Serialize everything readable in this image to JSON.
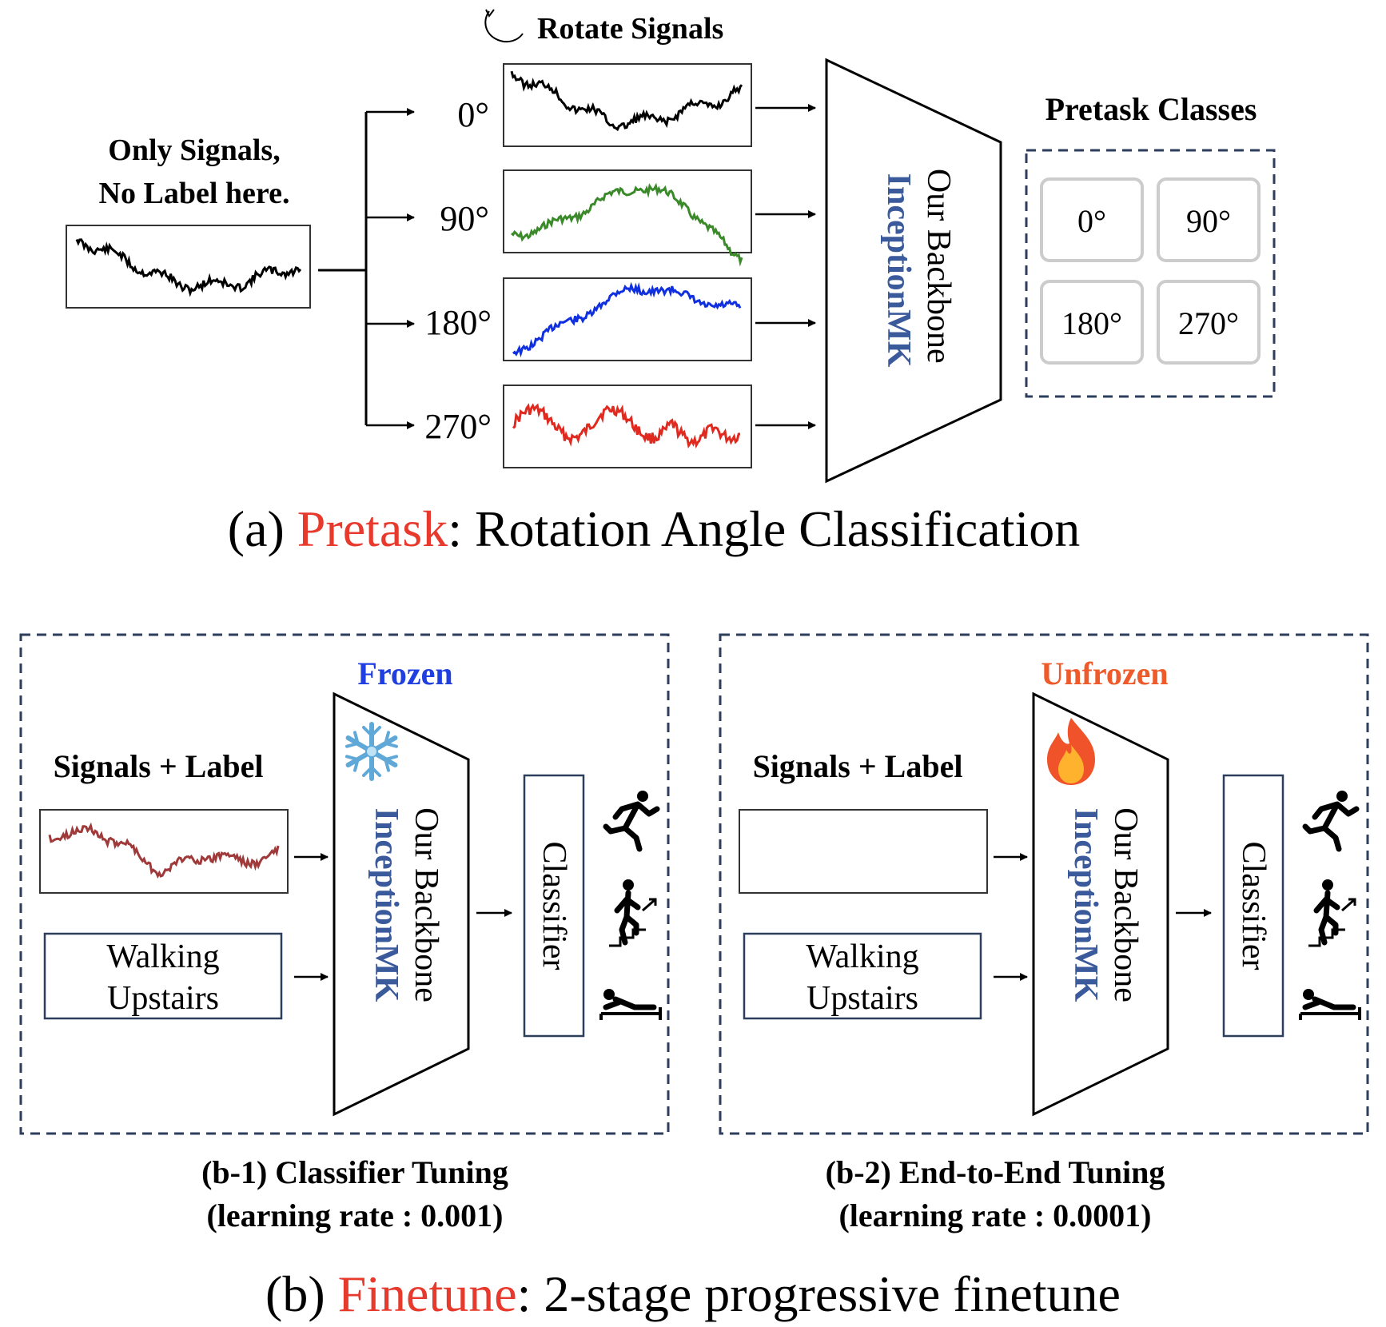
{
  "pretask": {
    "rotate_title": "Rotate Signals",
    "input_caption_line1": "Only Signals,",
    "input_caption_line2": "No Label here.",
    "angles": [
      "0°",
      "90°",
      "180°",
      "270°"
    ],
    "backbone_line1": "Our Backbone",
    "backbone_line2": "InceptionMK",
    "classes_title": "Pretask Classes",
    "classes": [
      "0°",
      "90°",
      "180°",
      "270°"
    ],
    "caption_prefix": "(a) ",
    "caption_highlight": "Pretask",
    "caption_rest": ": Rotation Angle Classification"
  },
  "finetune": {
    "panels": [
      {
        "state_label": "Frozen",
        "state_icon": "snowflake-icon",
        "input_title": "Signals + Label",
        "label_line1": "Walking",
        "label_line2": "Upstairs",
        "backbone_line1": "Our Backbone",
        "backbone_line2": "InceptionMK",
        "classifier": "Classifier",
        "subcaption_line1": "(b-1) Classifier Tuning",
        "subcaption_line2": "(learning rate : 0.001)"
      },
      {
        "state_label": "Unfrozen",
        "state_icon": "fire-icon",
        "input_title": "Signals + Label",
        "label_line1": "Walking",
        "label_line2": "Upstairs",
        "backbone_line1": "Our Backbone",
        "backbone_line2": "InceptionMK",
        "classifier": "Classifier",
        "subcaption_line1": "(b-2) End-to-End Tuning",
        "subcaption_line2": "(learning rate : 0.0001)"
      }
    ],
    "activity_icons": [
      "running-icon",
      "stairs-climbing-icon",
      "lying-down-icon"
    ],
    "caption_prefix": "(b) ",
    "caption_highlight": "Finetune",
    "caption_rest": ": 2-stage progressive finetune"
  },
  "colors": {
    "highlight_red": "#e8392d",
    "frozen_blue": "#1f3fe0",
    "unfrozen_orange": "#ef5a2a",
    "backbone_blue": "#3a5a9c",
    "dashed_navy": "#2c3e5c",
    "signal_black": "#000000",
    "signal_green": "#3a8a2a",
    "signal_blue": "#1030e0",
    "signal_red": "#e02a20",
    "signal_brown": "#a03a3a"
  }
}
